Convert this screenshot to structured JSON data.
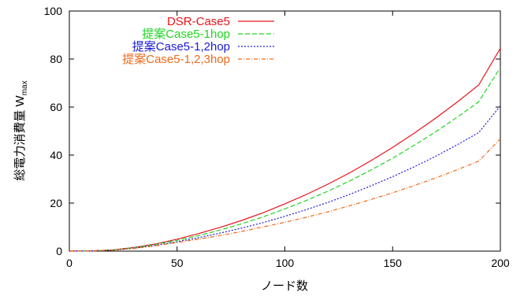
{
  "chart_data": {
    "type": "line",
    "xlabel": "ノード数",
    "ylabel": "総電力消費量 W",
    "ylabel_sub": "max",
    "xlim": [
      0,
      200
    ],
    "ylim": [
      0,
      100
    ],
    "xticks": [
      "0",
      "50",
      "100",
      "150",
      "200"
    ],
    "yticks": [
      "0",
      "20",
      "40",
      "60",
      "80",
      "100"
    ],
    "grid": false,
    "legend_position": "top-right",
    "x": [
      0,
      10,
      20,
      30,
      40,
      50,
      60,
      70,
      80,
      90,
      100,
      110,
      120,
      130,
      140,
      150,
      160,
      170,
      180,
      190,
      200
    ],
    "series": [
      {
        "name": "DSR-Case5",
        "color": "#e8141c",
        "dash": "solid",
        "values": [
          0,
          0.1,
          0.5,
          1.5,
          3.0,
          5.0,
          7.3,
          9.9,
          12.8,
          16.0,
          19.7,
          23.6,
          27.9,
          32.6,
          37.7,
          43.2,
          49.1,
          55.4,
          62.1,
          69.2,
          84.5
        ]
      },
      {
        "name": "提案Case5-1hop",
        "color": "#1fd51f",
        "dash": "dash",
        "values": [
          0,
          0.1,
          0.5,
          1.4,
          2.8,
          4.5,
          6.5,
          8.8,
          11.4,
          14.3,
          17.6,
          21.1,
          25.0,
          29.2,
          33.8,
          38.7,
          44.1,
          49.7,
          55.8,
          62.2,
          76.5
        ]
      },
      {
        "name": "提案Case5-1,2hop",
        "color": "#1a1ad8",
        "dash": "dot",
        "values": [
          0,
          0.1,
          0.4,
          1.2,
          2.4,
          3.9,
          5.6,
          7.5,
          9.6,
          11.9,
          14.5,
          17.3,
          20.3,
          23.6,
          27.2,
          31.0,
          35.1,
          39.5,
          44.3,
          49.4,
          60.5
        ]
      },
      {
        "name": "提案Case5-1,2,3hop",
        "color": "#f06a1c",
        "dash": "dashdot",
        "values": [
          0,
          0.1,
          0.4,
          1.1,
          2.2,
          3.6,
          5.0,
          6.5,
          8.2,
          10.1,
          12.0,
          14.1,
          16.4,
          18.9,
          21.5,
          24.3,
          27.3,
          30.5,
          33.9,
          37.5,
          46.8
        ]
      }
    ]
  }
}
